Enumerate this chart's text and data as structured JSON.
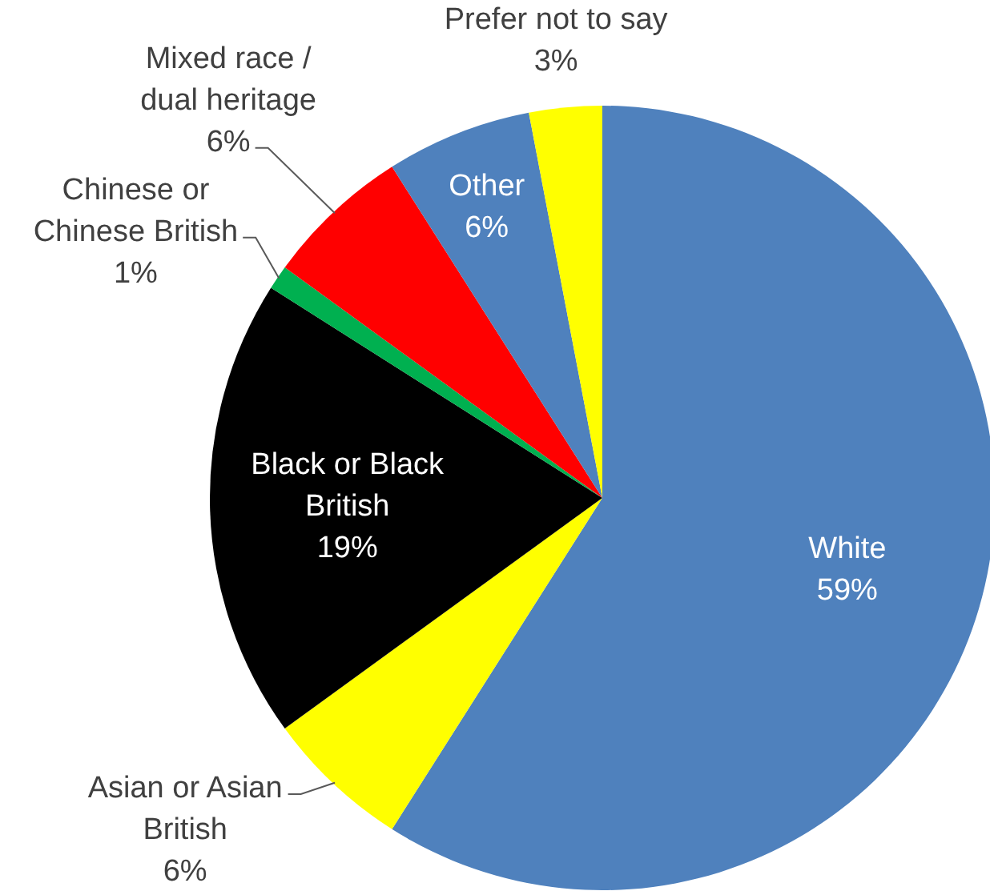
{
  "chart_data": {
    "type": "pie",
    "categories": [
      "White",
      "Asian or Asian British",
      "Black or Black British",
      "Chinese or Chinese British",
      "Mixed race / dual heritage",
      "Other",
      "Prefer not to say"
    ],
    "values": [
      59,
      6,
      19,
      1,
      6,
      6,
      3
    ],
    "colors": [
      "#4f81bd",
      "#ffff00",
      "#000000",
      "#00b050",
      "#ff0000",
      "#4f81bd",
      "#ffff00"
    ],
    "value_labels": [
      "59%",
      "6%",
      "19%",
      "1%",
      "6%",
      "6%",
      "3%"
    ]
  }
}
